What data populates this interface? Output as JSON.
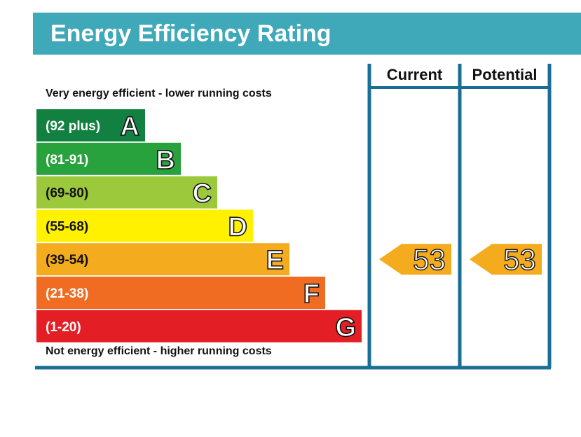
{
  "header": {
    "title": "Energy Efficiency Rating"
  },
  "captions": {
    "top": "Very energy efficient - lower running costs",
    "bottom": "Not energy efficient - higher running costs"
  },
  "colors": {
    "header": "#3fa8b9",
    "frame": "#1a6e94",
    "arrow": "#f5ab1e"
  },
  "chart_data": {
    "type": "bar",
    "columns": [
      "Current",
      "Potential"
    ],
    "bands": [
      {
        "letter": "A",
        "range": "(92 plus)",
        "color": "#118040"
      },
      {
        "letter": "B",
        "range": "(81-91)",
        "color": "#27a23c"
      },
      {
        "letter": "C",
        "range": "(69-80)",
        "color": "#9cc93c"
      },
      {
        "letter": "D",
        "range": "(55-68)",
        "color": "#fff100"
      },
      {
        "letter": "E",
        "range": "(39-54)",
        "color": "#f5ab1e"
      },
      {
        "letter": "F",
        "range": "(21-38)",
        "color": "#ef6c22"
      },
      {
        "letter": "G",
        "range": "(1-20)",
        "color": "#e31e25"
      }
    ],
    "ratings": [
      {
        "column": "Current",
        "value": 53,
        "band": "E"
      },
      {
        "column": "Potential",
        "value": 53,
        "band": "E"
      }
    ]
  }
}
